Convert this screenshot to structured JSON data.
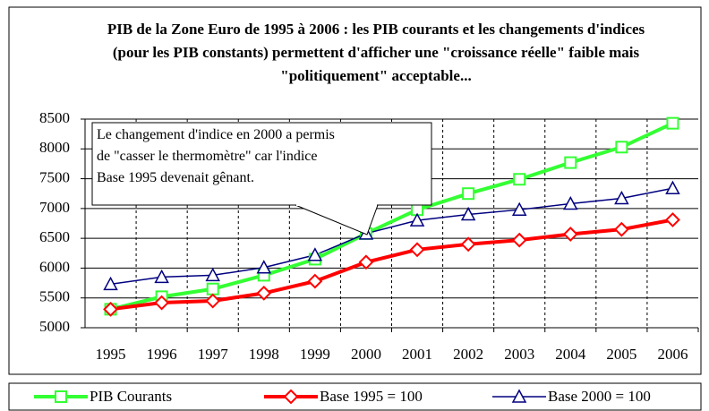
{
  "chart_data": {
    "type": "line",
    "title": "PIB de la Zone Euro de 1995 à 2006 : les PIB courants et les changements d'indices (pour les PIB constants) permettent d'afficher une \"croissance réelle\" faible mais \"politiquement\" acceptable...",
    "annotation": [
      "Le changement d'indice en 2000 a permis",
      "de \"casser le thermomètre\" car l'indice",
      "Base 1995 devenait gênant."
    ],
    "categories": [
      "1995",
      "1996",
      "1997",
      "1998",
      "1999",
      "2000",
      "2001",
      "2002",
      "2003",
      "2004",
      "2005",
      "2006"
    ],
    "series": [
      {
        "name": "PIB Courants",
        "color": "#33ff33",
        "marker": "square",
        "values": [
          5310,
          5520,
          5650,
          5880,
          6150,
          6580,
          6980,
          7250,
          7490,
          7770,
          8030,
          8430
        ]
      },
      {
        "name": "Base 1995 = 100",
        "color": "#ff0000",
        "marker": "diamond",
        "values": [
          5310,
          5420,
          5450,
          5580,
          5780,
          6100,
          6310,
          6400,
          6470,
          6570,
          6650,
          6810
        ]
      },
      {
        "name": "Base 2000 = 100",
        "color": "#000080",
        "marker": "triangle",
        "values": [
          5730,
          5850,
          5880,
          6010,
          6220,
          6580,
          6800,
          6900,
          6980,
          7080,
          7170,
          7340
        ]
      }
    ],
    "ylim": [
      5000,
      8500
    ],
    "yticks": [
      5000,
      5500,
      6000,
      6500,
      7000,
      7500,
      8000,
      8500
    ],
    "grid": true,
    "legend": "bottom"
  }
}
